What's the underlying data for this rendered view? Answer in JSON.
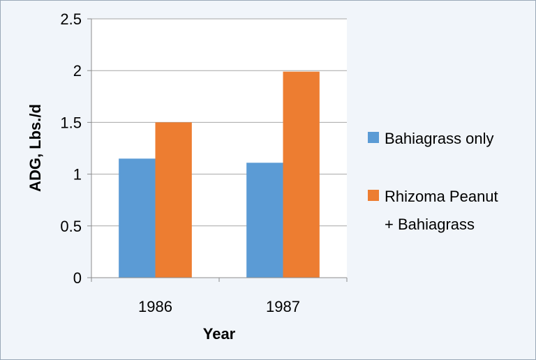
{
  "chart_data": {
    "type": "bar",
    "title": "",
    "xlabel": "Year",
    "ylabel": "ADG, Lbs./d",
    "categories": [
      "1986",
      "1987"
    ],
    "series": [
      {
        "name": "Bahiagrass only",
        "values": [
          1.15,
          1.11
        ],
        "color": "#5b9bd5"
      },
      {
        "name": "Rhizoma Peanut + Bahiagrass",
        "legend_lines": [
          "Rhizoma Peanut",
          "+ Bahiagrass"
        ],
        "values": [
          1.5,
          1.99
        ],
        "color": "#ed7d31"
      }
    ],
    "ylim": [
      0,
      2.5
    ],
    "yticks": [
      0,
      0.5,
      1,
      1.5,
      2,
      2.5
    ],
    "ytick_labels": [
      "0",
      "0.5",
      "1",
      "1.5",
      "2",
      "2.5"
    ],
    "grid": true,
    "legend_position": "right"
  }
}
